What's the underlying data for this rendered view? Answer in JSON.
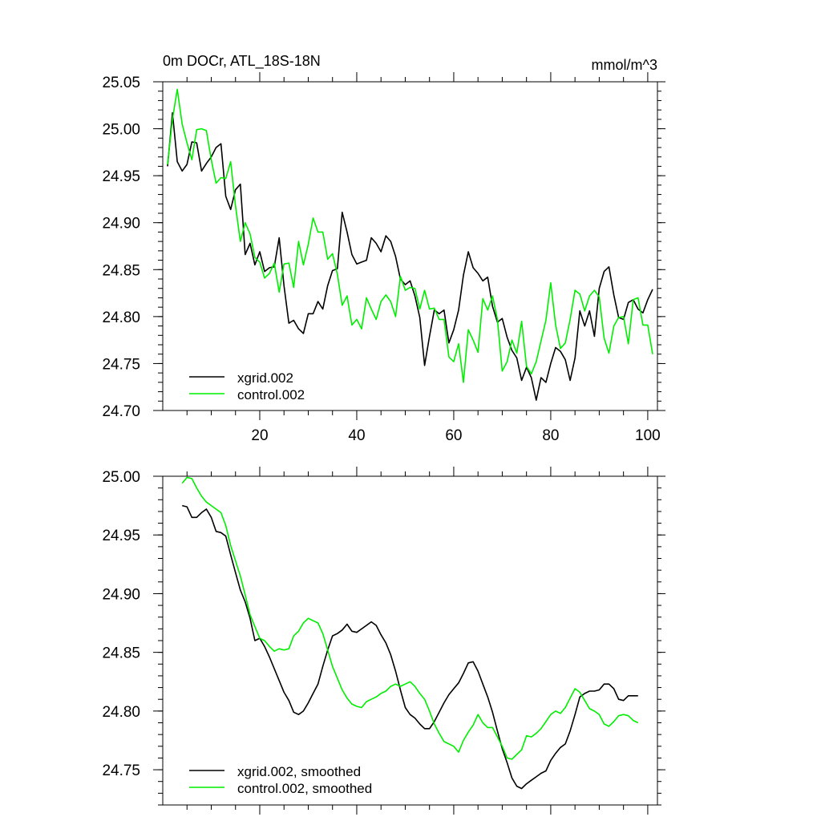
{
  "colors": {
    "xgrid": "#000000",
    "control": "#00ee00",
    "axes": "#000000",
    "background": "#ffffff"
  },
  "chart_data": [
    {
      "type": "line",
      "title": "0m DOCr, ATL_18S-18N",
      "units": "mmol/m^3",
      "xlim": [
        0,
        102
      ],
      "ylim": [
        24.7,
        25.05
      ],
      "xticks": [
        20,
        40,
        60,
        80,
        100
      ],
      "xtick_labels": [
        "20",
        "40",
        "60",
        "80",
        "100"
      ],
      "yticks": [
        24.7,
        24.75,
        24.8,
        24.85,
        24.9,
        24.95,
        25.0,
        25.05
      ],
      "ytick_labels": [
        "24.70",
        "24.75",
        "24.80",
        "24.85",
        "24.90",
        "24.95",
        "25.00",
        "25.05"
      ],
      "grid": false,
      "legend_position": "bottom-left",
      "series": [
        {
          "name": "xgrid.002",
          "color": "#000000",
          "x": [
            1,
            2,
            3,
            4,
            5,
            6,
            7,
            8,
            9,
            10,
            11,
            12,
            13,
            14,
            15,
            16,
            17,
            18,
            19,
            20,
            21,
            22,
            23,
            24,
            25,
            26,
            27,
            28,
            29,
            30,
            31,
            32,
            33,
            34,
            35,
            36,
            37,
            38,
            39,
            40,
            41,
            42,
            43,
            44,
            45,
            46,
            47,
            48,
            49,
            50,
            51,
            52,
            53,
            54,
            55,
            56,
            57,
            58,
            59,
            60,
            61,
            62,
            63,
            64,
            65,
            66,
            67,
            68,
            69,
            70,
            71,
            72,
            73,
            74,
            75,
            76,
            77,
            78,
            79,
            80,
            81,
            82,
            83,
            84,
            85,
            86,
            87,
            88,
            89,
            90,
            91,
            92,
            93,
            94,
            95,
            96,
            97,
            98,
            99,
            100,
            101
          ],
          "values": [
            24.96,
            25.017,
            24.965,
            24.955,
            24.962,
            24.986,
            24.985,
            24.955,
            24.963,
            24.97,
            24.98,
            24.984,
            24.928,
            24.914,
            24.935,
            24.941,
            24.866,
            24.878,
            24.855,
            24.869,
            24.848,
            24.852,
            24.853,
            24.884,
            24.833,
            24.793,
            24.796,
            24.787,
            24.782,
            24.803,
            24.803,
            24.816,
            24.808,
            24.833,
            24.849,
            24.851,
            24.911,
            24.89,
            24.866,
            24.856,
            24.858,
            24.86,
            24.884,
            24.878,
            24.869,
            24.886,
            24.88,
            24.864,
            24.84,
            24.834,
            24.838,
            24.822,
            24.799,
            24.748,
            24.779,
            24.807,
            24.803,
            24.807,
            24.772,
            24.786,
            24.807,
            24.844,
            24.869,
            24.852,
            24.846,
            24.838,
            24.842,
            24.811,
            24.794,
            24.798,
            24.778,
            24.764,
            24.756,
            24.732,
            24.746,
            24.735,
            24.711,
            24.735,
            24.73,
            24.75,
            24.767,
            24.763,
            24.754,
            24.732,
            24.756,
            24.806,
            24.79,
            24.806,
            24.779,
            24.83,
            24.848,
            24.853,
            24.823,
            24.799,
            24.797,
            24.815,
            24.818,
            24.808,
            24.804,
            24.818,
            24.829
          ]
        },
        {
          "name": "control.002",
          "color": "#00ee00",
          "x": [
            1,
            2,
            3,
            4,
            5,
            6,
            7,
            8,
            9,
            10,
            11,
            12,
            13,
            14,
            15,
            16,
            17,
            18,
            19,
            20,
            21,
            22,
            23,
            24,
            25,
            26,
            27,
            28,
            29,
            30,
            31,
            32,
            33,
            34,
            35,
            36,
            37,
            38,
            39,
            40,
            41,
            42,
            43,
            44,
            45,
            46,
            47,
            48,
            49,
            50,
            51,
            52,
            53,
            54,
            55,
            56,
            57,
            58,
            59,
            60,
            61,
            62,
            63,
            64,
            65,
            66,
            67,
            68,
            69,
            70,
            71,
            72,
            73,
            74,
            75,
            76,
            77,
            78,
            79,
            80,
            81,
            82,
            83,
            84,
            85,
            86,
            87,
            88,
            89,
            90,
            91,
            92,
            93,
            94,
            95,
            96,
            97,
            98,
            99,
            100,
            101
          ],
          "values": [
            24.962,
            25.01,
            25.042,
            25.005,
            24.985,
            24.967,
            24.999,
            25.0,
            24.998,
            24.967,
            24.942,
            24.948,
            24.947,
            24.965,
            24.918,
            24.88,
            24.9,
            24.888,
            24.863,
            24.858,
            24.841,
            24.846,
            24.857,
            24.826,
            24.856,
            24.857,
            24.831,
            24.88,
            24.855,
            24.877,
            24.905,
            24.89,
            24.89,
            24.861,
            24.867,
            24.845,
            24.812,
            24.822,
            24.791,
            24.797,
            24.787,
            24.82,
            24.808,
            24.797,
            24.816,
            24.823,
            24.816,
            24.8,
            24.843,
            24.828,
            24.831,
            24.83,
            24.808,
            24.828,
            24.808,
            24.809,
            24.797,
            24.797,
            24.757,
            24.752,
            24.771,
            24.73,
            24.786,
            24.775,
            24.762,
            24.819,
            24.807,
            24.822,
            24.797,
            24.742,
            24.752,
            24.775,
            24.761,
            24.795,
            24.747,
            24.739,
            24.752,
            24.774,
            24.796,
            24.836,
            24.791,
            24.766,
            24.772,
            24.797,
            24.828,
            24.824,
            24.806,
            24.822,
            24.828,
            24.821,
            24.777,
            24.761,
            24.79,
            24.799,
            24.8,
            24.771,
            24.818,
            24.82,
            24.791,
            24.791,
            24.76
          ]
        }
      ]
    },
    {
      "type": "line",
      "title": "",
      "units": "",
      "xlim": [
        0,
        102
      ],
      "ylim": [
        24.72,
        25.0
      ],
      "xticks": [
        20,
        40,
        60,
        80,
        100
      ],
      "xtick_labels": [],
      "yticks": [
        24.75,
        24.8,
        24.85,
        24.9,
        24.95,
        25.0
      ],
      "ytick_labels": [
        "24.75",
        "24.80",
        "24.85",
        "24.90",
        "24.95",
        "25.00"
      ],
      "grid": false,
      "legend_position": "bottom-left",
      "series": [
        {
          "name": "xgrid.002, smoothed",
          "color": "#000000",
          "x": [
            4,
            5,
            6,
            7,
            8,
            9,
            10,
            11,
            12,
            13,
            14,
            15,
            16,
            17,
            18,
            19,
            20,
            21,
            22,
            23,
            24,
            25,
            26,
            27,
            28,
            29,
            30,
            31,
            32,
            33,
            34,
            35,
            36,
            37,
            38,
            39,
            40,
            41,
            42,
            43,
            44,
            45,
            46,
            47,
            48,
            49,
            50,
            51,
            52,
            53,
            54,
            55,
            56,
            57,
            58,
            59,
            60,
            61,
            62,
            63,
            64,
            65,
            66,
            67,
            68,
            69,
            70,
            71,
            72,
            73,
            74,
            75,
            76,
            77,
            78,
            79,
            80,
            81,
            82,
            83,
            84,
            85,
            86,
            87,
            88,
            89,
            90,
            91,
            92,
            93,
            94,
            95,
            96,
            97,
            98
          ],
          "values": [
            24.975,
            24.974,
            24.965,
            24.965,
            24.969,
            24.972,
            24.965,
            24.953,
            24.952,
            24.949,
            24.933,
            24.918,
            24.903,
            24.893,
            24.879,
            24.86,
            24.862,
            24.855,
            24.846,
            24.836,
            24.826,
            24.816,
            24.809,
            24.799,
            24.797,
            24.8,
            24.807,
            24.815,
            24.823,
            24.838,
            24.852,
            24.864,
            24.866,
            24.869,
            24.874,
            24.868,
            24.867,
            24.87,
            24.873,
            24.876,
            24.873,
            24.865,
            24.858,
            24.848,
            24.834,
            24.818,
            24.803,
            24.797,
            24.794,
            24.789,
            24.785,
            24.785,
            24.791,
            24.799,
            24.807,
            24.814,
            24.819,
            24.824,
            24.832,
            24.841,
            24.842,
            24.834,
            24.823,
            24.812,
            24.799,
            24.783,
            24.768,
            24.756,
            24.743,
            24.736,
            24.734,
            24.738,
            24.741,
            24.744,
            24.747,
            24.749,
            24.758,
            24.764,
            24.769,
            24.772,
            24.783,
            24.797,
            24.812,
            24.815,
            24.817,
            24.817,
            24.818,
            24.823,
            24.823,
            24.819,
            24.81,
            24.809,
            24.813,
            24.813,
            24.813
          ]
        },
        {
          "name": "control.002, smoothed",
          "color": "#00ee00",
          "x": [
            4,
            5,
            6,
            7,
            8,
            9,
            10,
            11,
            12,
            13,
            14,
            15,
            16,
            17,
            18,
            19,
            20,
            21,
            22,
            23,
            24,
            25,
            26,
            27,
            28,
            29,
            30,
            31,
            32,
            33,
            34,
            35,
            36,
            37,
            38,
            39,
            40,
            41,
            42,
            43,
            44,
            45,
            46,
            47,
            48,
            49,
            50,
            51,
            52,
            53,
            54,
            55,
            56,
            57,
            58,
            59,
            60,
            61,
            62,
            63,
            64,
            65,
            66,
            67,
            68,
            69,
            70,
            71,
            72,
            73,
            74,
            75,
            76,
            77,
            78,
            79,
            80,
            81,
            82,
            83,
            84,
            85,
            86,
            87,
            88,
            89,
            90,
            91,
            92,
            93,
            94,
            95,
            96,
            97,
            98
          ],
          "values": [
            24.994,
            24.999,
            24.998,
            24.99,
            24.983,
            24.978,
            24.975,
            24.972,
            24.969,
            24.958,
            24.941,
            24.928,
            24.915,
            24.899,
            24.882,
            24.872,
            24.862,
            24.86,
            24.855,
            24.851,
            24.853,
            24.852,
            24.853,
            24.864,
            24.868,
            24.875,
            24.879,
            24.877,
            24.875,
            24.866,
            24.852,
            24.838,
            24.828,
            24.818,
            24.811,
            24.806,
            24.804,
            24.803,
            24.808,
            24.81,
            24.812,
            24.815,
            24.817,
            24.821,
            24.823,
            24.821,
            24.823,
            24.825,
            24.821,
            24.815,
            24.81,
            24.8,
            24.789,
            24.781,
            24.774,
            24.772,
            24.77,
            24.765,
            24.775,
            24.782,
            24.788,
            24.797,
            24.79,
            24.786,
            24.786,
            24.778,
            24.77,
            24.76,
            24.759,
            24.763,
            24.767,
            24.779,
            24.778,
            24.781,
            24.785,
            24.791,
            24.797,
            24.8,
            24.798,
            24.803,
            24.811,
            24.819,
            24.816,
            24.809,
            24.802,
            24.8,
            24.797,
            24.789,
            24.787,
            24.791,
            24.796,
            24.797,
            24.796,
            24.792,
            24.79
          ]
        }
      ]
    }
  ]
}
